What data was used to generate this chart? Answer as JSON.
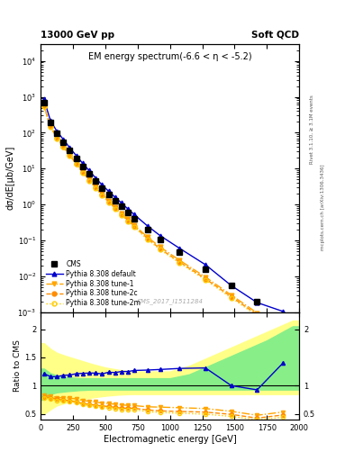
{
  "title_left": "13000 GeV pp",
  "title_right": "Soft QCD",
  "main_title": "EM energy spectrum(-6.6 < η < -5.2)",
  "ylabel_main": "dσ/dE[μb/GeV]",
  "ylabel_ratio": "Ratio to CMS",
  "xlabel": "Electromagnetic energy [GeV]",
  "right_label_top": "Rivet 3.1.10, ≥ 3.1M events",
  "right_label_bot": "mcplots.cern.ch [arXiv:1306.3436]",
  "watermark": "CMS_2017_I1511284",
  "ylim_main": [
    0.001,
    30000.0
  ],
  "ylim_ratio": [
    0.4,
    2.3
  ],
  "xlim": [
    0,
    2000
  ],
  "cms_x": [
    25,
    75,
    125,
    175,
    225,
    275,
    325,
    375,
    425,
    475,
    525,
    575,
    625,
    675,
    725,
    825,
    925,
    1075,
    1275,
    1475,
    1675,
    1875
  ],
  "cms_y": [
    700,
    190,
    95,
    55,
    32,
    19,
    11.5,
    7.2,
    4.5,
    2.9,
    1.9,
    1.3,
    0.88,
    0.6,
    0.41,
    0.2,
    0.105,
    0.046,
    0.016,
    0.0055,
    0.002,
    0.00075
  ],
  "pythia_default_x": [
    25,
    75,
    125,
    175,
    225,
    275,
    325,
    375,
    425,
    475,
    525,
    575,
    625,
    675,
    725,
    825,
    925,
    1075,
    1275,
    1475,
    1675,
    1875
  ],
  "pythia_default_y": [
    850,
    220,
    110,
    65,
    38,
    23,
    14,
    8.8,
    5.5,
    3.5,
    2.35,
    1.6,
    1.1,
    0.75,
    0.52,
    0.255,
    0.135,
    0.06,
    0.021,
    0.0055,
    0.00185,
    0.00105
  ],
  "pythia_tune1_x": [
    25,
    75,
    125,
    175,
    225,
    275,
    325,
    375,
    425,
    475,
    525,
    575,
    625,
    675,
    725,
    825,
    925,
    1075,
    1275,
    1475,
    1675,
    1875
  ],
  "pythia_tune1_y": [
    580,
    155,
    75,
    43,
    25,
    14.5,
    8.5,
    5.2,
    3.2,
    2.0,
    1.3,
    0.87,
    0.58,
    0.39,
    0.265,
    0.125,
    0.065,
    0.028,
    0.0095,
    0.003,
    0.00095,
    0.0004
  ],
  "pythia_tune2c_x": [
    25,
    75,
    125,
    175,
    225,
    275,
    325,
    375,
    425,
    475,
    525,
    575,
    625,
    675,
    725,
    825,
    925,
    1075,
    1275,
    1475,
    1675,
    1875
  ],
  "pythia_tune2c_y": [
    560,
    150,
    72,
    41,
    23.5,
    13.5,
    7.9,
    4.8,
    2.95,
    1.85,
    1.2,
    0.8,
    0.53,
    0.36,
    0.245,
    0.114,
    0.058,
    0.025,
    0.0085,
    0.0027,
    0.00085,
    0.00036
  ],
  "pythia_tune2m_x": [
    25,
    75,
    125,
    175,
    225,
    275,
    325,
    375,
    425,
    475,
    525,
    575,
    625,
    675,
    725,
    825,
    925,
    1075,
    1275,
    1475,
    1675,
    1875
  ],
  "pythia_tune2m_y": [
    550,
    145,
    70,
    40,
    23,
    13.2,
    7.7,
    4.65,
    2.85,
    1.78,
    1.15,
    0.77,
    0.51,
    0.345,
    0.235,
    0.108,
    0.055,
    0.0235,
    0.0079,
    0.0025,
    0.00079,
    0.00033
  ],
  "color_cms": "#000000",
  "color_default": "#0000cc",
  "color_tune1": "#ffa500",
  "color_tune2c": "#ff8c00",
  "color_tune2m": "#ffcc00",
  "ratio_default": [
    1.214,
    1.158,
    1.158,
    1.182,
    1.188,
    1.211,
    1.217,
    1.222,
    1.222,
    1.207,
    1.237,
    1.231,
    1.25,
    1.25,
    1.268,
    1.275,
    1.286,
    1.304,
    1.313,
    1.0,
    0.925,
    1.4
  ],
  "ratio_tune1": [
    0.829,
    0.816,
    0.789,
    0.782,
    0.781,
    0.763,
    0.739,
    0.722,
    0.711,
    0.69,
    0.684,
    0.669,
    0.659,
    0.65,
    0.646,
    0.625,
    0.619,
    0.609,
    0.594,
    0.545,
    0.475,
    0.533
  ],
  "ratio_tune2c": [
    0.8,
    0.789,
    0.758,
    0.745,
    0.734,
    0.711,
    0.687,
    0.667,
    0.656,
    0.638,
    0.632,
    0.615,
    0.602,
    0.6,
    0.598,
    0.57,
    0.552,
    0.543,
    0.531,
    0.491,
    0.425,
    0.48
  ],
  "ratio_tune2m": [
    0.786,
    0.763,
    0.737,
    0.727,
    0.719,
    0.695,
    0.67,
    0.646,
    0.633,
    0.614,
    0.605,
    0.592,
    0.58,
    0.575,
    0.573,
    0.54,
    0.524,
    0.511,
    0.494,
    0.455,
    0.395,
    0.44
  ],
  "band_x": [
    0,
    25,
    75,
    125,
    200,
    300,
    400,
    500,
    600,
    700,
    800,
    900,
    1000,
    1150,
    1350,
    1550,
    1750,
    1950,
    2000
  ],
  "band_green_lo": [
    0.75,
    0.75,
    0.85,
    0.88,
    0.9,
    0.92,
    0.93,
    0.93,
    0.93,
    0.93,
    0.93,
    0.93,
    0.93,
    0.93,
    0.93,
    0.93,
    0.93,
    0.93,
    0.93
  ],
  "band_green_hi": [
    1.3,
    1.3,
    1.22,
    1.18,
    1.15,
    1.13,
    1.13,
    1.13,
    1.13,
    1.13,
    1.13,
    1.13,
    1.13,
    1.2,
    1.4,
    1.6,
    1.8,
    2.05,
    2.05
  ],
  "band_yellow_lo": [
    0.5,
    0.5,
    0.58,
    0.65,
    0.7,
    0.75,
    0.79,
    0.82,
    0.84,
    0.85,
    0.85,
    0.85,
    0.85,
    0.85,
    0.85,
    0.85,
    0.85,
    0.85,
    0.85
  ],
  "band_yellow_hi": [
    1.75,
    1.75,
    1.65,
    1.58,
    1.52,
    1.45,
    1.38,
    1.32,
    1.28,
    1.25,
    1.25,
    1.25,
    1.25,
    1.35,
    1.55,
    1.75,
    1.95,
    2.15,
    2.15
  ]
}
